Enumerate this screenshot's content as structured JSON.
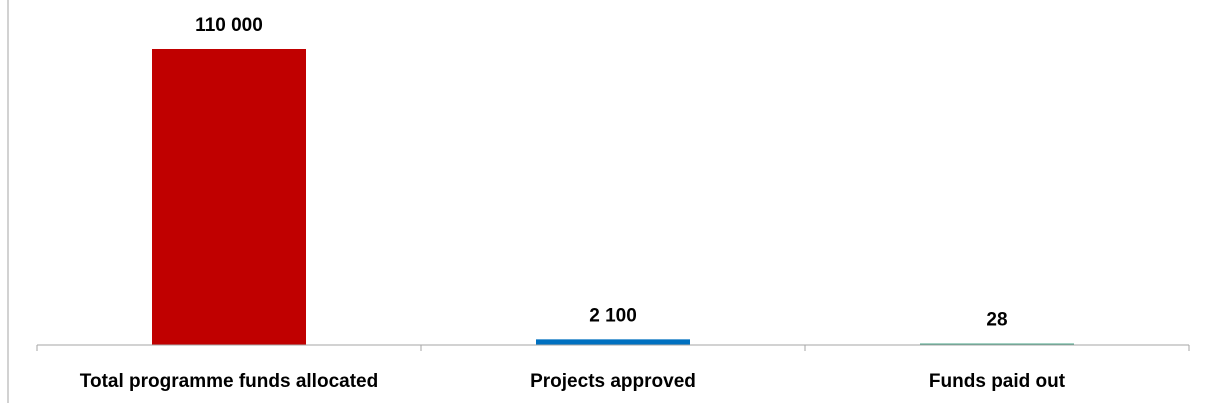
{
  "chart_data": {
    "type": "bar",
    "title": "",
    "xlabel": "",
    "ylabel": "",
    "categories": [
      "Total programme funds allocated",
      "Projects approved",
      "Funds paid out"
    ],
    "values": [
      110000,
      2100,
      28
    ],
    "data_labels": [
      "110 000",
      "2 100",
      "28"
    ],
    "colors": [
      "#c00000",
      "#0070c0",
      "#4aa387"
    ],
    "ylim": [
      0,
      110000
    ],
    "grid": false,
    "legend": "none"
  }
}
